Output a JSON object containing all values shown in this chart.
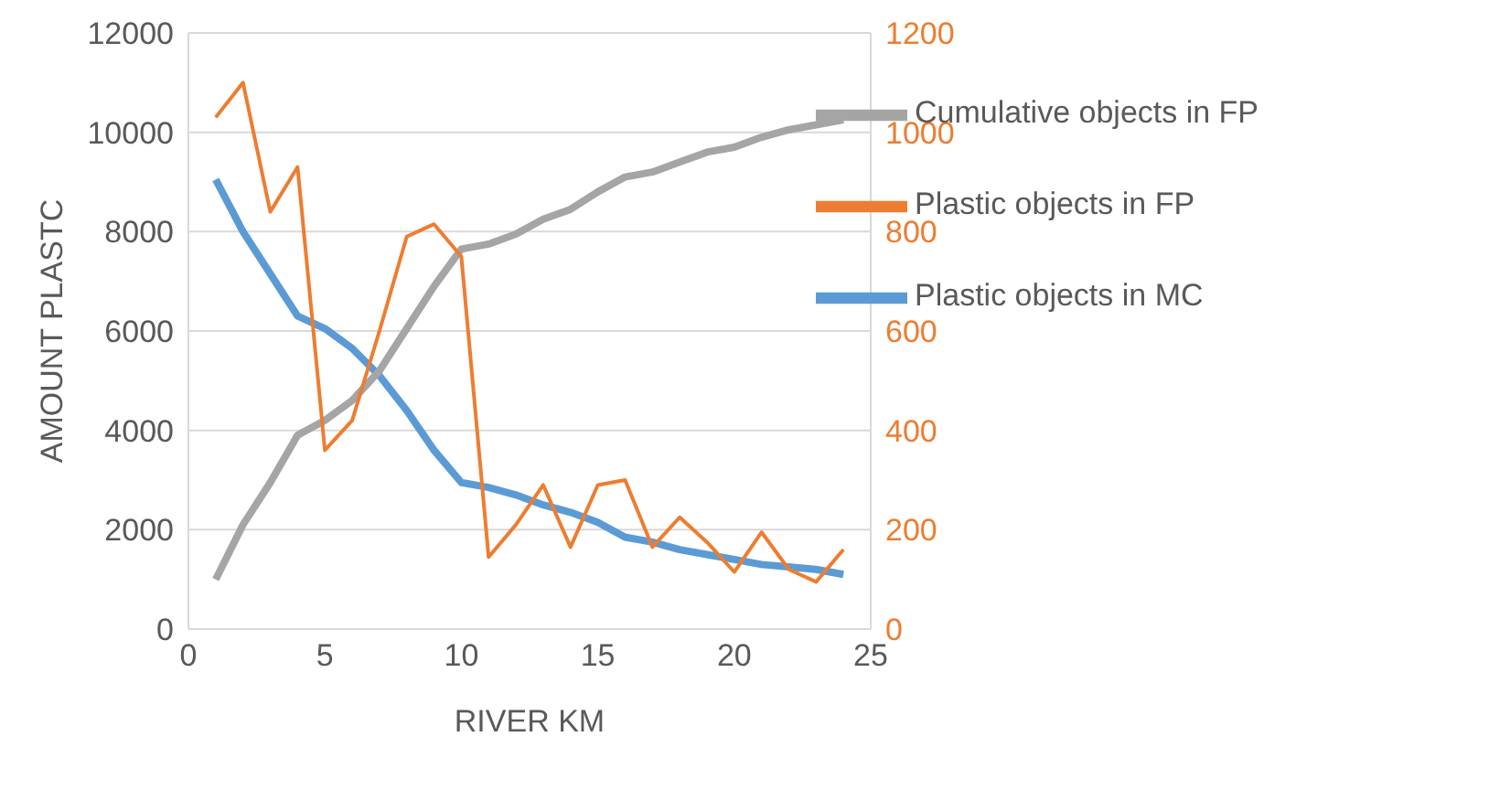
{
  "chart_data": {
    "type": "line",
    "xlabel": "RIVER KM",
    "ylabel": "AMOUNT PLASTC",
    "x": [
      1,
      2,
      3,
      4,
      5,
      6,
      7,
      8,
      9,
      10,
      11,
      12,
      13,
      14,
      15,
      16,
      17,
      18,
      19,
      20,
      21,
      22,
      23,
      24
    ],
    "series": [
      {
        "name": "Plastic objects in MC",
        "color": "#5b9bd5",
        "values": [
          9050,
          8000,
          7150,
          6300,
          6050,
          5650,
          5100,
          4400,
          3600,
          2950,
          2850,
          2700,
          2500,
          2350,
          2150,
          1850,
          1750,
          1600,
          1500,
          1400,
          1300,
          1250,
          1200,
          1100
        ]
      },
      {
        "name": "Cumulative objects in FP",
        "color": "#a5a5a5",
        "values": [
          1000,
          2100,
          2950,
          3900,
          4200,
          4600,
          5200,
          6050,
          6900,
          7650,
          7750,
          7950,
          8250,
          8450,
          8800,
          9100,
          9200,
          9400,
          9600,
          9700,
          9900,
          10050,
          10150,
          10250
        ]
      },
      {
        "name": "Plastic objects in FP",
        "color": "#ed7d31",
        "axis": "y2",
        "values": [
          1030,
          1100,
          840,
          930,
          360,
          420,
          600,
          790,
          815,
          750,
          145,
          210,
          290,
          165,
          290,
          300,
          165,
          225,
          175,
          115,
          195,
          120,
          95,
          160
        ]
      }
    ],
    "xlim": [
      0,
      25
    ],
    "xticks": [
      0,
      5,
      10,
      15,
      20,
      25
    ],
    "ylim": [
      0,
      12000
    ],
    "yticks": [
      0,
      2000,
      4000,
      6000,
      8000,
      10000,
      12000
    ],
    "y2lim": [
      0,
      1200
    ],
    "y2ticks": [
      0,
      200,
      400,
      600,
      800,
      1000,
      1200
    ],
    "grid": "y",
    "legend": "top right",
    "marker": "none",
    "line_style": "solid"
  }
}
